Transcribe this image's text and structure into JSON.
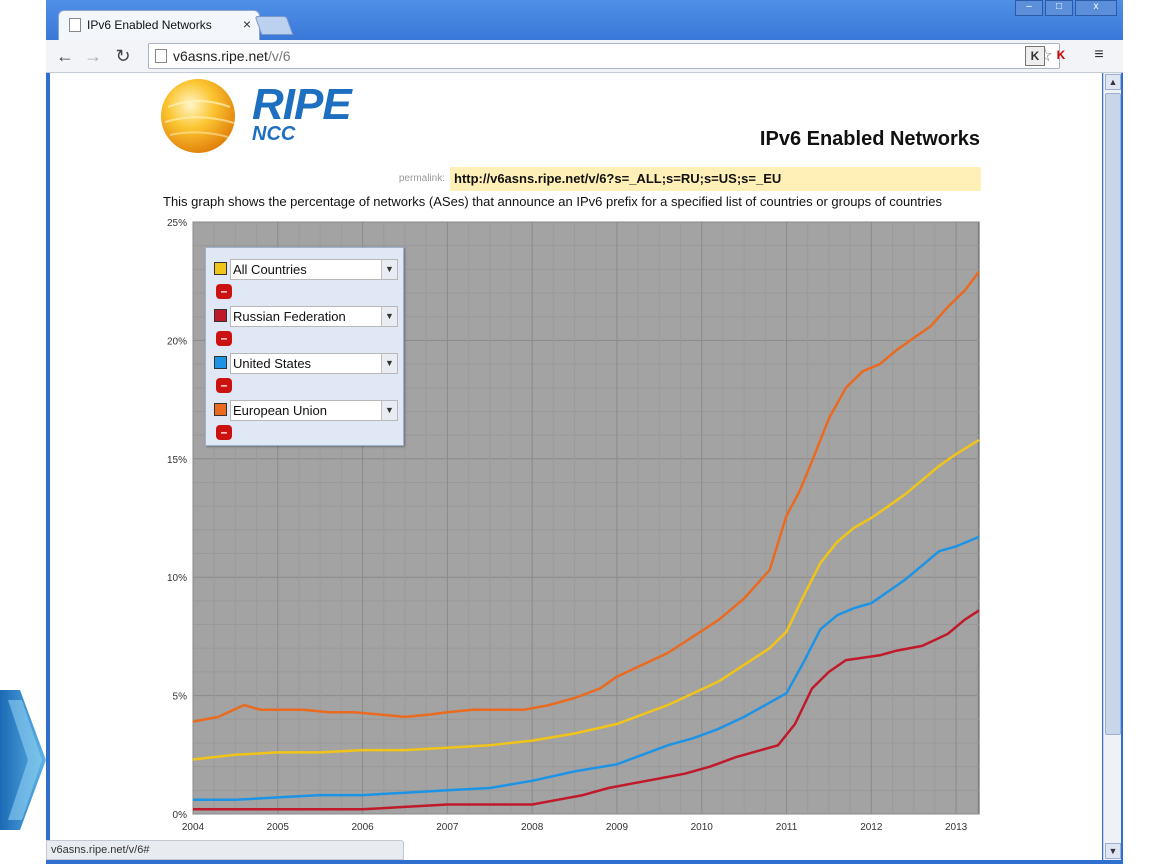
{
  "browser": {
    "tab_title": "IPv6 Enabled Networks",
    "tab_close": "×",
    "url_host": "v6asns.ripe.net",
    "url_path": "/v/6",
    "status_url": "v6asns.ripe.net/v/6#",
    "ext1": "K",
    "ext2": "K",
    "window_minimize": "–",
    "window_maximize": "□",
    "window_close": "x"
  },
  "logo": {
    "ripe": "RIPE",
    "ncc": "NCC"
  },
  "page": {
    "title": "IPv6 Enabled Networks",
    "permalink_label": "permalink:",
    "permalink_url": "http://v6asns.ripe.net/v/6?s=_ALL;s=RU;s=US;s=_EU",
    "description": "This graph shows the percentage of networks (ASes) that announce an IPv6 prefix for a specified list of countries or groups of countries"
  },
  "legend": {
    "items": [
      {
        "label": "All Countries",
        "color": "#f0c419"
      },
      {
        "label": "Russian Federation",
        "color": "#c01a2a"
      },
      {
        "label": "United States",
        "color": "#1d93e6"
      },
      {
        "label": "European Union",
        "color": "#ea6a1f"
      }
    ],
    "remove_symbol": "–",
    "caret": "▼"
  },
  "chart_data": {
    "type": "line",
    "ylim": [
      0,
      25
    ],
    "xlim": [
      2004,
      2013.27
    ],
    "y_ticks": [
      "0%",
      "5%",
      "10%",
      "15%",
      "20%",
      "25%"
    ],
    "x_ticks": [
      "2004",
      "2005",
      "2006",
      "2007",
      "2008",
      "2009",
      "2010",
      "2011",
      "2012",
      "2013"
    ],
    "series": [
      {
        "name": "European Union",
        "color": "#ea6a1f",
        "x": [
          2004.0,
          2004.3,
          2004.6,
          2004.8,
          2005.0,
          2005.3,
          2005.6,
          2005.9,
          2006.2,
          2006.5,
          2006.8,
          2007.0,
          2007.3,
          2007.6,
          2007.9,
          2008.2,
          2008.5,
          2008.8,
          2009.0,
          2009.3,
          2009.6,
          2009.9,
          2010.2,
          2010.5,
          2010.8,
          2011.0,
          2011.15,
          2011.3,
          2011.5,
          2011.7,
          2011.9,
          2012.1,
          2012.3,
          2012.5,
          2012.7,
          2012.9,
          2013.1,
          2013.27
        ],
        "y": [
          3.9,
          4.1,
          4.6,
          4.4,
          4.4,
          4.4,
          4.3,
          4.3,
          4.2,
          4.1,
          4.2,
          4.3,
          4.4,
          4.4,
          4.4,
          4.6,
          4.9,
          5.3,
          5.8,
          6.3,
          6.8,
          7.5,
          8.2,
          9.1,
          10.3,
          12.6,
          13.6,
          14.9,
          16.7,
          18.0,
          18.7,
          19.0,
          19.6,
          20.1,
          20.6,
          21.4,
          22.1,
          22.9
        ]
      },
      {
        "name": "All Countries",
        "color": "#f0c419",
        "x": [
          2004.0,
          2004.5,
          2005.0,
          2005.5,
          2006.0,
          2006.5,
          2007.0,
          2007.5,
          2008.0,
          2008.5,
          2009.0,
          2009.3,
          2009.6,
          2009.9,
          2010.2,
          2010.5,
          2010.8,
          2011.0,
          2011.2,
          2011.4,
          2011.6,
          2011.8,
          2012.0,
          2012.2,
          2012.4,
          2012.6,
          2012.8,
          2013.0,
          2013.27
        ],
        "y": [
          2.3,
          2.5,
          2.6,
          2.6,
          2.7,
          2.7,
          2.8,
          2.9,
          3.1,
          3.4,
          3.8,
          4.2,
          4.6,
          5.1,
          5.6,
          6.3,
          7.0,
          7.7,
          9.2,
          10.6,
          11.5,
          12.1,
          12.5,
          13.0,
          13.5,
          14.1,
          14.7,
          15.2,
          15.8
        ]
      },
      {
        "name": "United States",
        "color": "#1d93e6",
        "x": [
          2004.0,
          2004.5,
          2005.0,
          2005.5,
          2006.0,
          2006.5,
          2007.0,
          2007.5,
          2008.0,
          2008.5,
          2009.0,
          2009.3,
          2009.6,
          2009.9,
          2010.2,
          2010.5,
          2010.8,
          2011.0,
          2011.2,
          2011.4,
          2011.6,
          2011.8,
          2012.0,
          2012.2,
          2012.4,
          2012.6,
          2012.8,
          2013.0,
          2013.27
        ],
        "y": [
          0.6,
          0.6,
          0.7,
          0.8,
          0.8,
          0.9,
          1.0,
          1.1,
          1.4,
          1.8,
          2.1,
          2.5,
          2.9,
          3.2,
          3.6,
          4.1,
          4.7,
          5.1,
          6.4,
          7.8,
          8.4,
          8.7,
          8.9,
          9.4,
          9.9,
          10.5,
          11.1,
          11.3,
          11.7
        ]
      },
      {
        "name": "Russian Federation",
        "color": "#c01a2a",
        "x": [
          2004.0,
          2004.5,
          2005.0,
          2005.5,
          2006.0,
          2006.5,
          2007.0,
          2007.5,
          2008.0,
          2008.3,
          2008.6,
          2008.9,
          2009.2,
          2009.5,
          2009.8,
          2010.1,
          2010.4,
          2010.7,
          2010.9,
          2011.1,
          2011.3,
          2011.5,
          2011.7,
          2011.9,
          2012.1,
          2012.3,
          2012.6,
          2012.9,
          2013.1,
          2013.27
        ],
        "y": [
          0.2,
          0.2,
          0.2,
          0.2,
          0.2,
          0.3,
          0.4,
          0.4,
          0.4,
          0.6,
          0.8,
          1.1,
          1.3,
          1.5,
          1.7,
          2.0,
          2.4,
          2.7,
          2.9,
          3.8,
          5.3,
          6.0,
          6.5,
          6.6,
          6.7,
          6.9,
          7.1,
          7.6,
          8.2,
          8.6
        ]
      }
    ]
  }
}
